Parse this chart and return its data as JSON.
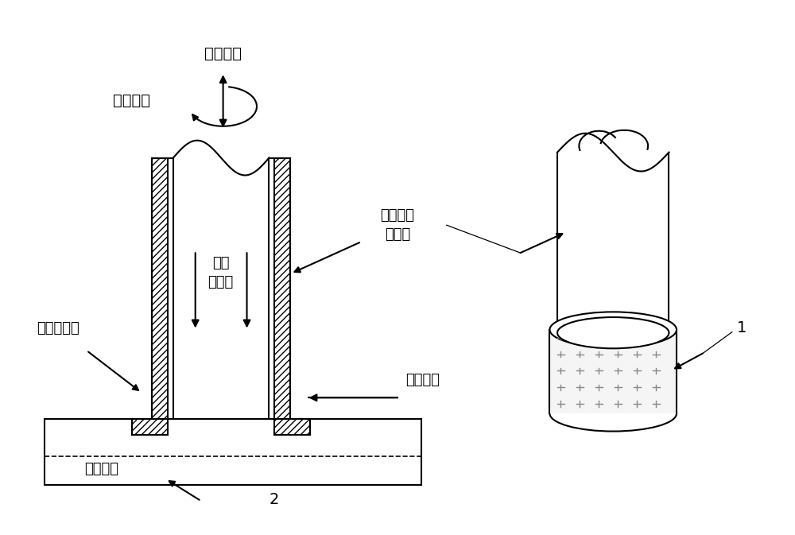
{
  "bg_color": "#ffffff",
  "line_color": "#000000",
  "labels": {
    "ultrasonic": "超声振动",
    "high_speed": "高速旋转",
    "hollow_tool": "空心金刚\n石刀具",
    "inner_fluid": "内部\n切削液",
    "outer_fluid": "外部切削液",
    "feed_dir": "进给方向",
    "workpiece": "工件材料",
    "label1": "1",
    "label2": "2"
  },
  "font_size": 14
}
